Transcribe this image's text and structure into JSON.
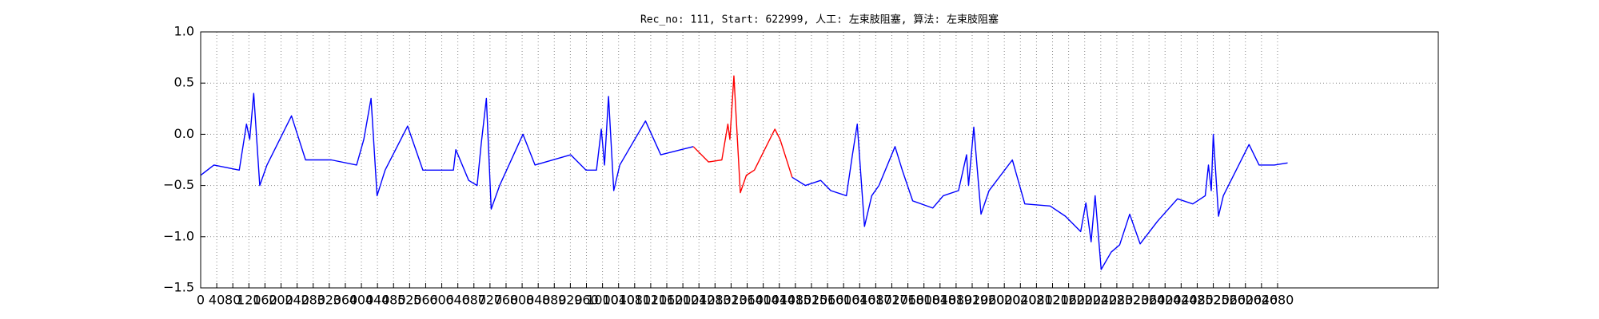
{
  "chart_data": {
    "type": "line",
    "title": "Rec_no: 111, Start: 622999, 人工: 左束肢阻塞, 算法: 左束肢阻塞",
    "x": [
      0,
      33,
      96,
      114,
      122,
      132,
      147,
      165,
      226,
      261,
      325,
      388,
      406,
      424,
      439,
      459,
      515,
      553,
      629,
      635,
      667,
      688,
      698,
      711,
      723,
      744,
      802,
      832,
      921,
      959,
      985,
      997,
      1005,
      1015,
      1028,
      1043,
      1107,
      1145,
      1226,
      1264,
      1297,
      1312,
      1317,
      1327,
      1343,
      1358,
      1378,
      1429,
      1442,
      1472,
      1505,
      1543,
      1568,
      1607,
      1622,
      1634,
      1652,
      1670,
      1688,
      1728,
      1746,
      1772,
      1822,
      1848,
      1886,
      1906,
      1911,
      1924,
      1942,
      1962,
      2020,
      2051,
      2114,
      2152,
      2190,
      2203,
      2216,
      2226,
      2241,
      2266,
      2287,
      2312,
      2338,
      2381,
      2431,
      2469,
      2500,
      2508,
      2515,
      2520,
      2533,
      2545,
      2609,
      2634,
      2672,
      2705
    ],
    "series": [
      {
        "color": "#0000ff",
        "values": [
          -0.4,
          -0.3,
          -0.35,
          0.1,
          -0.05,
          0.4,
          -0.5,
          -0.3,
          0.18,
          -0.25,
          -0.25,
          -0.3,
          -0.05,
          0.35,
          -0.6,
          -0.35,
          0.08,
          -0.35,
          -0.35,
          -0.15,
          -0.45,
          -0.5,
          -0.1,
          0.35,
          -0.73,
          -0.5,
          0.0,
          -0.3,
          -0.2,
          -0.35,
          -0.35,
          0.05,
          -0.3,
          0.37,
          -0.55,
          -0.3,
          0.13,
          -0.2,
          -0.12,
          null,
          null,
          null,
          null,
          null,
          null,
          null,
          null,
          null,
          null,
          -0.42,
          -0.5,
          -0.45,
          -0.55,
          -0.6,
          -0.2,
          0.1,
          -0.9,
          -0.6,
          -0.5,
          -0.12,
          -0.35,
          -0.65,
          -0.72,
          -0.6,
          -0.55,
          -0.2,
          -0.5,
          0.07,
          -0.78,
          -0.55,
          -0.25,
          -0.68,
          -0.7,
          -0.8,
          -0.95,
          -0.67,
          -1.05,
          -0.6,
          -1.32,
          -1.15,
          -1.08,
          -0.78,
          -1.07,
          -0.85,
          -0.63,
          -0.68,
          -0.6,
          -0.3,
          -0.55,
          0.0,
          -0.8,
          -0.6,
          -0.1,
          -0.3,
          -0.3,
          -0.28
        ]
      },
      {
        "color": "#ff0000",
        "values": [
          null,
          null,
          null,
          null,
          null,
          null,
          null,
          null,
          null,
          null,
          null,
          null,
          null,
          null,
          null,
          null,
          null,
          null,
          null,
          null,
          null,
          null,
          null,
          null,
          null,
          null,
          null,
          null,
          null,
          null,
          null,
          null,
          null,
          null,
          null,
          null,
          null,
          null,
          -0.12,
          -0.27,
          -0.25,
          0.1,
          -0.05,
          0.57,
          -0.57,
          -0.4,
          -0.35,
          0.05,
          -0.05,
          -0.42,
          null,
          null,
          null,
          null,
          null,
          null,
          null,
          null,
          null,
          null,
          null,
          null,
          null,
          null,
          null,
          null,
          null,
          null,
          null,
          null,
          null,
          null,
          null,
          null,
          null,
          null,
          null,
          null,
          null,
          null,
          null,
          null,
          null,
          null,
          null,
          null,
          null,
          null,
          null,
          null,
          null,
          null,
          null,
          null,
          null,
          null
        ]
      }
    ],
    "xlim": [
      0,
      3080
    ],
    "xticks": [
      0,
      40,
      80,
      120,
      160,
      200,
      240,
      280,
      320,
      360,
      400,
      440,
      480,
      520,
      560,
      600,
      640,
      680,
      720,
      760,
      800,
      840,
      880,
      920,
      960,
      1000,
      1040,
      1080,
      1120,
      1160,
      1200,
      1240,
      1280,
      1320,
      1360,
      1400,
      1440,
      1480,
      1520,
      1560,
      1600,
      1640,
      1680,
      1720,
      1760,
      1800,
      1840,
      1880,
      1920,
      1960,
      2000,
      2040,
      2080,
      2120,
      2160,
      2200,
      2240,
      2280,
      2320,
      2360,
      2400,
      2440,
      2480,
      2520,
      2560,
      2600,
      2640,
      2680
    ],
    "ylim": [
      -1.5,
      1.0
    ],
    "yticks": [
      {
        "value": -1.5,
        "label": "−1.5"
      },
      {
        "value": -1.0,
        "label": "−1.0"
      },
      {
        "value": -0.5,
        "label": "−0.5"
      },
      {
        "value": 0.0,
        "label": "0.0"
      },
      0.5,
      {
        "value": 1.0,
        "label": "1.0"
      }
    ],
    "grid": true
  }
}
